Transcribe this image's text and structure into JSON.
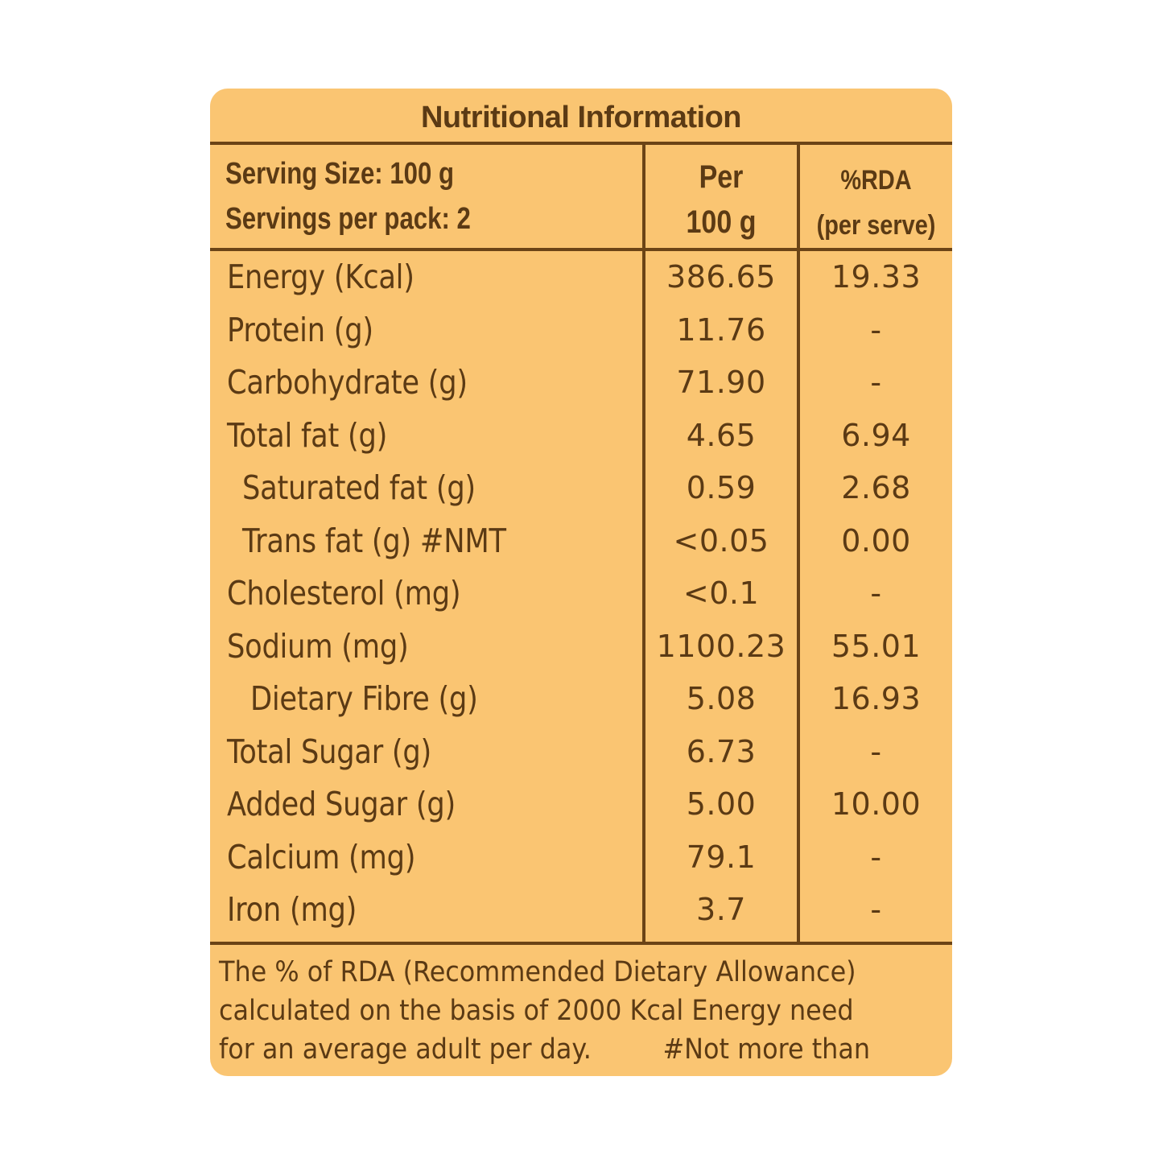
{
  "title": "Nutritional Information",
  "header": {
    "serving_size": "Serving Size: 100 g",
    "servings_per_pack": "Servings per pack: 2",
    "per_line1": "Per",
    "per_line2": "100 g",
    "rda_line1": "%RDA",
    "rda_line2": "(per serve)"
  },
  "rows": [
    {
      "label": "Energy (Kcal)",
      "per": "386.65",
      "rda": "19.33"
    },
    {
      "label": "Protein (g)",
      "per": "11.76",
      "rda": "-"
    },
    {
      "label": "Carbohydrate (g)",
      "per": "71.90",
      "rda": "-"
    },
    {
      "label": "Total fat (g)",
      "per": "4.65",
      "rda": "6.94"
    },
    {
      "label": "Saturated fat (g)",
      "per": "0.59",
      "rda": "2.68"
    },
    {
      "label": "Trans fat (g) #NMT",
      "per": "<0.05",
      "rda": "0.00"
    },
    {
      "label": "Cholesterol (mg)",
      "per": "<0.1",
      "rda": "-"
    },
    {
      "label": "Sodium (mg)",
      "per": "1100.23",
      "rda": "55.01"
    },
    {
      "label": "Dietary Fibre (g)",
      "per": "5.08",
      "rda": "16.93"
    },
    {
      "label": "Total Sugar (g)",
      "per": "6.73",
      "rda": "-"
    },
    {
      "label": "Added Sugar (g)",
      "per": "5.00",
      "rda": "10.00"
    },
    {
      "label": "Calcium (mg)",
      "per": "79.1",
      "rda": "-"
    },
    {
      "label": "Iron (mg)",
      "per": "3.7",
      "rda": "-"
    }
  ],
  "footnote": {
    "line1": "The % of RDA (Recommended Dietary Allowance)",
    "line2": "calculated on the basis of 2000 Kcal Energy need",
    "line3": "for an average adult per day.",
    "nmt": "#Not more than"
  },
  "colors": {
    "panel_background": "#fac572",
    "text": "#5b3a14",
    "rules": "#6b4416"
  }
}
